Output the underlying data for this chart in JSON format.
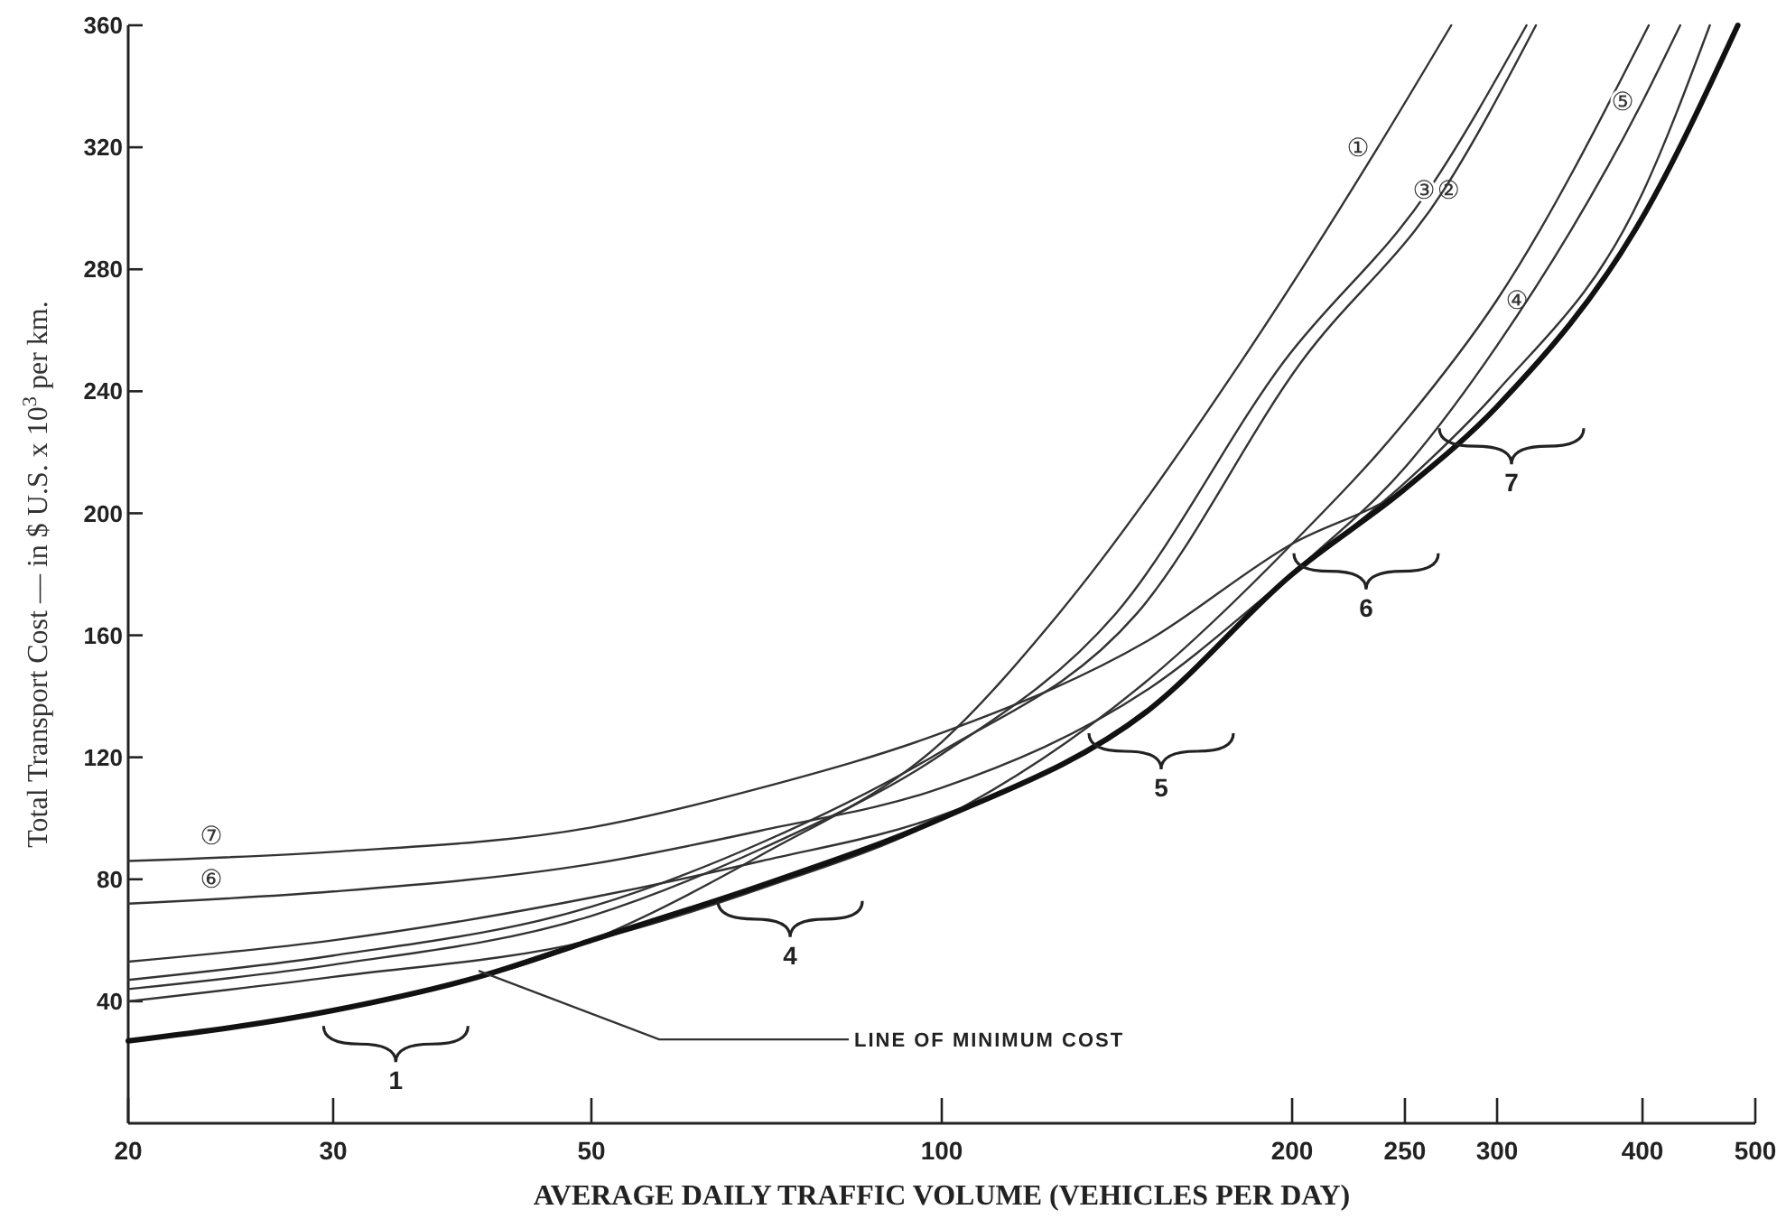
{
  "chart_data": {
    "type": "line",
    "xlabel": "AVERAGE DAILY TRAFFIC VOLUME (VEHICLES PER DAY)",
    "ylabel": "Total Transport Cost –– in $ U.S. x 10$^{3}$ per km.",
    "log": "x",
    "xlim": [
      20,
      500
    ],
    "xticks": [
      20,
      30,
      50,
      100,
      200,
      250,
      300,
      400,
      500
    ],
    "ylim": [
      0,
      360
    ],
    "yticks": [
      40,
      80,
      120,
      160,
      200,
      240,
      280,
      320,
      360
    ],
    "grid": false,
    "marker": "none",
    "line_style": "solid",
    "series": [
      {
        "name": "①",
        "color": "#333333",
        "x": [
          20,
          30,
          50,
          70,
          100,
          126,
          181,
          237,
          274
        ],
        "values": [
          27,
          37,
          60,
          88,
          125,
          167,
          250,
          320,
          360
        ]
      },
      {
        "name": "②",
        "color": "#333333",
        "x": [
          20,
          30,
          50,
          70,
          100,
          141,
          197,
          262,
          318
        ],
        "values": [
          44,
          52,
          68,
          90,
          121,
          167,
          250,
          306,
          360
        ]
      },
      {
        "name": "③",
        "color": "#333333",
        "x": [
          20,
          30,
          50,
          70,
          100,
          147,
          204,
          270,
          324
        ],
        "values": [
          47,
          55,
          71,
          92,
          122,
          167,
          250,
          306,
          360
        ]
      },
      {
        "name": "④",
        "color": "#333333",
        "x": [
          20,
          30,
          50,
          70,
          100,
          150,
          200,
          250,
          300,
          405
        ],
        "values": [
          40,
          48,
          60,
          77,
          100,
          145,
          190,
          230,
          270,
          360
        ]
      },
      {
        "name": "⑤",
        "color": "#333333",
        "x": [
          20,
          30,
          50,
          70,
          100,
          150,
          200,
          250,
          300,
          400,
          431
        ],
        "values": [
          53,
          60,
          74,
          86,
          101,
          135,
          180,
          215,
          255,
          335,
          360
        ]
      },
      {
        "name": "⑥",
        "color": "#333333",
        "x": [
          20,
          30,
          50,
          70,
          100,
          150,
          200,
          250,
          300,
          400,
          457
        ],
        "values": [
          72,
          76,
          85,
          96,
          110,
          142,
          180,
          210,
          240,
          305,
          360
        ]
      },
      {
        "name": "⑦",
        "color": "#333333",
        "x": [
          20,
          30,
          50,
          70,
          100,
          150,
          200,
          250,
          300,
          400,
          483
        ],
        "values": [
          86,
          89,
          97,
          110,
          128,
          158,
          190,
          208,
          235,
          297,
          360
        ]
      },
      {
        "color": "#111111",
        "x": [
          20,
          30,
          40,
          50,
          70,
          100,
          150,
          200,
          250,
          300,
          400,
          483
        ],
        "values": [
          27,
          37,
          48,
          60,
          78,
          100,
          135,
          180,
          208,
          235,
          297,
          360
        ]
      }
    ],
    "annotations": [
      {
        "text": "LINE OF MINIMUM COST",
        "x": 40,
        "y": 50
      },
      {
        "text": "1",
        "x": 33,
        "y": 39
      },
      {
        "text": "4",
        "x": 72,
        "y": 80
      },
      {
        "text": "5",
        "x": 150,
        "y": 135
      },
      {
        "text": "6",
        "x": 225,
        "y": 194
      },
      {
        "text": "7",
        "x": 300,
        "y": 235
      }
    ]
  }
}
